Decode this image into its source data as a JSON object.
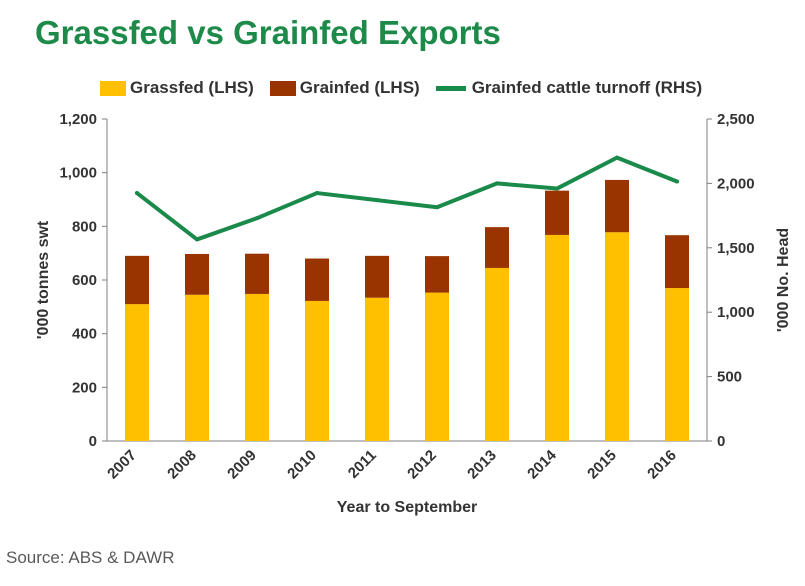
{
  "title": "Grassfed vs Grainfed Exports",
  "source": "Source: ABS & DAWR",
  "colors": {
    "title": "#1e8a4a",
    "grassfed": "#ffc000",
    "grainfed": "#993300",
    "turnoff": "#1a8a4a",
    "axis_text": "#333333"
  },
  "chart_data": {
    "type": "bar",
    "stacked": true,
    "categories": [
      "2007",
      "2008",
      "2009",
      "2010",
      "2011",
      "2012",
      "2013",
      "2014",
      "2015",
      "2016"
    ],
    "xlabel": "Year to September",
    "ylabel": "'000 tonnes swt",
    "ylabel_right": "'000 No. Head",
    "ylim": [
      0,
      1200
    ],
    "ylim_right": [
      0,
      2500
    ],
    "y_ticks": [
      "0",
      "200",
      "400",
      "600",
      "800",
      "1,000",
      "1,200"
    ],
    "y_ticks_right": [
      "0",
      "500",
      "1,000",
      "1,500",
      "2,000",
      "2,500"
    ],
    "grid": false,
    "legend_position": "top",
    "series": [
      {
        "name": "Grassfed (LHS)",
        "type": "bar",
        "axis": "left",
        "values": [
          510,
          545,
          548,
          522,
          534,
          553,
          645,
          768,
          778,
          570
        ]
      },
      {
        "name": "Grainfed (LHS)",
        "type": "bar",
        "axis": "left",
        "values": [
          180,
          152,
          150,
          158,
          156,
          136,
          152,
          165,
          195,
          197
        ]
      },
      {
        "name": "Grainfed cattle turnoff (RHS)",
        "type": "line",
        "axis": "right",
        "values": [
          1925,
          1565,
          1730,
          1925,
          1870,
          1815,
          2000,
          1960,
          2200,
          2015
        ]
      }
    ]
  }
}
